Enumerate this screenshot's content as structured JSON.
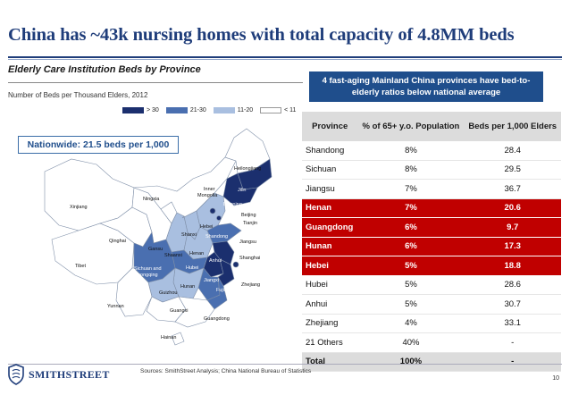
{
  "header": {
    "title": "China has ~43k nursing homes with total capacity of 4.8MM beds"
  },
  "left": {
    "subtitle": "Elderly Care Institution Beds by Province",
    "units": "Number of Beds per Thousand Elders, 2012",
    "legend": [
      {
        "label": "> 30",
        "color": "#1b2f6e"
      },
      {
        "label": "21-30",
        "color": "#4a6fb0"
      },
      {
        "label": "11-20",
        "color": "#a9bfe0"
      },
      {
        "label": "< 11",
        "color": "#ffffff"
      }
    ],
    "nationwide": "Nationwide: 21.5 beds per 1,000",
    "map_labels": {
      "heilongjiang": "Heilongjiang",
      "jilin": "Jilin",
      "inner_mongolia_1": "Inner",
      "inner_mongolia_2": "Mongolia",
      "xinjiang": "Xinjiang",
      "ningxia": "Ningxia",
      "liaoning": "Liaoning",
      "beijing": "Beijing",
      "tianjin": "Tianjin",
      "hebei": "Hebei",
      "shanxi": "Shanxi",
      "shandong": "Shandong",
      "qinghai": "Qinghai",
      "gansu": "Gansu",
      "shaanxi": "Shaanxi",
      "henan": "Henan",
      "jiangsu": "Jiangsu",
      "anhui": "Anhui",
      "shanghai": "Shanghai",
      "tibet": "Tibet",
      "sichuan_1": "Sichuan and",
      "sichuan_2": "Chongqing",
      "hubei": "Hubei",
      "hunan": "Hunan",
      "jiangxi": "Jiangxi",
      "zhejiang": "Zhejiang",
      "guizhou": "Guizhou",
      "fujian": "Fujian",
      "yunnan": "Yunnan",
      "guangxi": "Guangxi",
      "guangdong": "Guangdong",
      "hainan": "Hainan"
    }
  },
  "right": {
    "callout": "4 fast-aging Mainland China provinces have bed-to-elderly ratios below national average",
    "columns": [
      "Province",
      "% of 65+ y.o. Population",
      "Beds per 1,000 Elders"
    ],
    "rows": [
      {
        "province": "Shandong",
        "pct": "8%",
        "beds": "28.4",
        "highlight": false
      },
      {
        "province": "Sichuan",
        "pct": "8%",
        "beds": "29.5",
        "highlight": false
      },
      {
        "province": "Jiangsu",
        "pct": "7%",
        "beds": "36.7",
        "highlight": false
      },
      {
        "province": "Henan",
        "pct": "7%",
        "beds": "20.6",
        "highlight": true
      },
      {
        "province": "Guangdong",
        "pct": "6%",
        "beds": "9.7",
        "highlight": true
      },
      {
        "province": "Hunan",
        "pct": "6%",
        "beds": "17.3",
        "highlight": true
      },
      {
        "province": "Hebei",
        "pct": "5%",
        "beds": "18.8",
        "highlight": true
      },
      {
        "province": "Hubei",
        "pct": "5%",
        "beds": "28.6",
        "highlight": false
      },
      {
        "province": "Anhui",
        "pct": "5%",
        "beds": "30.7",
        "highlight": false
      },
      {
        "province": "Zhejiang",
        "pct": "4%",
        "beds": "33.1",
        "highlight": false
      },
      {
        "province": "21 Others",
        "pct": "40%",
        "beds": "-",
        "highlight": false
      }
    ],
    "total": {
      "province": "Total",
      "pct": "100%",
      "beds": "-"
    }
  },
  "footer": {
    "source": "Sources: SmithStreet Analysis; China National Bureau of Statistics",
    "logo": "SMITHSTREET",
    "page": "10"
  }
}
